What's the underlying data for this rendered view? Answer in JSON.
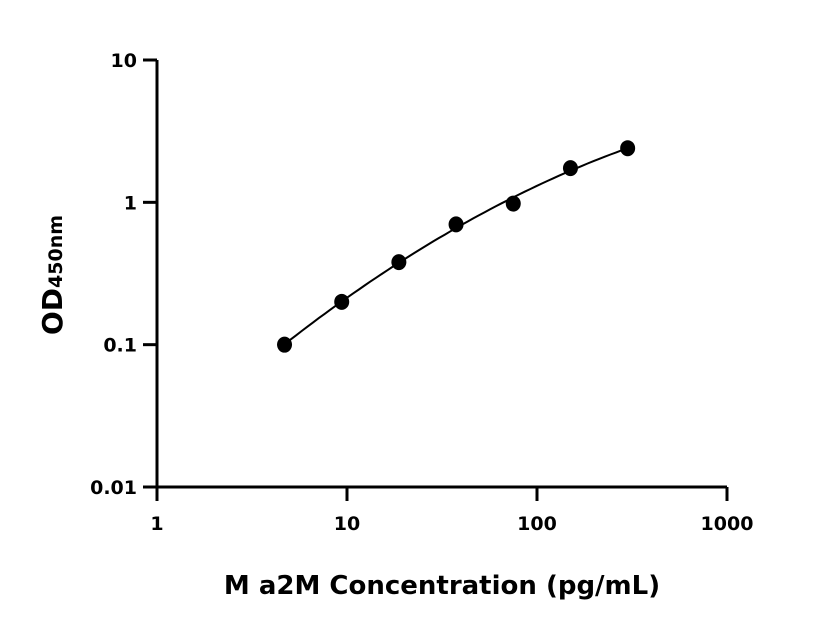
{
  "chart_data": {
    "type": "scatter",
    "title": "",
    "xlabel": "M a2M Concentration (pg/mL)",
    "ylabel": "OD",
    "ylabel_subscript": "450nm",
    "xscale": "log",
    "yscale": "log",
    "xlim": [
      1,
      1000
    ],
    "ylim": [
      0.01,
      10
    ],
    "xticks": [
      "1",
      "10",
      "100",
      "1000"
    ],
    "yticks": [
      "0.01",
      "0.1",
      "1",
      "10"
    ],
    "grid": false,
    "fit_curve": true,
    "colors": {
      "points": "#000000",
      "curve": "#000000"
    },
    "x": [
      4.69,
      9.38,
      18.75,
      37.5,
      75,
      150,
      300
    ],
    "y": [
      0.1,
      0.2,
      0.38,
      0.7,
      0.98,
      1.74,
      2.4
    ]
  }
}
